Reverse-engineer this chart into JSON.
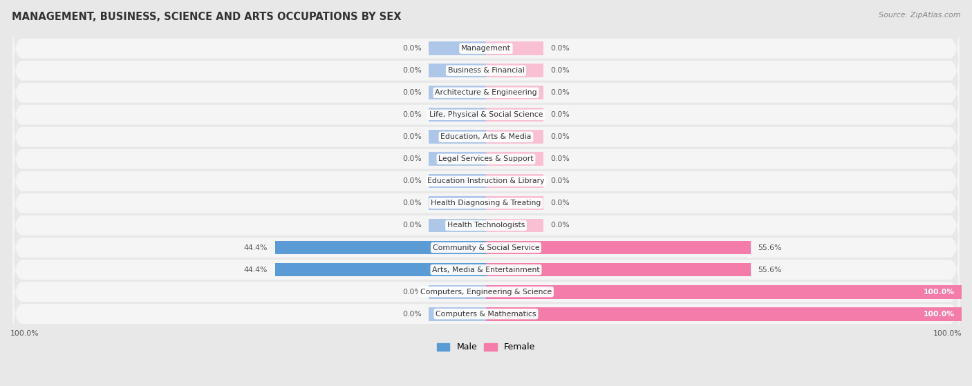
{
  "title": "MANAGEMENT, BUSINESS, SCIENCE AND ARTS OCCUPATIONS BY SEX",
  "source": "Source: ZipAtlas.com",
  "categories": [
    "Management",
    "Business & Financial",
    "Architecture & Engineering",
    "Life, Physical & Social Science",
    "Education, Arts & Media",
    "Legal Services & Support",
    "Education Instruction & Library",
    "Health Diagnosing & Treating",
    "Health Technologists",
    "Community & Social Service",
    "Arts, Media & Entertainment",
    "Computers, Engineering & Science",
    "Computers & Mathematics"
  ],
  "male_values": [
    0.0,
    0.0,
    0.0,
    0.0,
    0.0,
    0.0,
    0.0,
    0.0,
    0.0,
    44.4,
    44.4,
    0.0,
    0.0
  ],
  "female_values": [
    0.0,
    0.0,
    0.0,
    0.0,
    0.0,
    0.0,
    0.0,
    0.0,
    0.0,
    55.6,
    55.6,
    100.0,
    100.0
  ],
  "male_color": "#5b9bd5",
  "male_light_color": "#aec6e8",
  "female_color": "#f47caa",
  "female_light_color": "#f9c0d4",
  "bg_color": "#e8e8e8",
  "row_bg_color": "#f5f5f5",
  "bar_height": 0.62,
  "zero_bar_width": 12,
  "label_fontsize": 7.8,
  "title_fontsize": 10.5,
  "legend_male_color": "#5b9bd5",
  "legend_female_color": "#f47caa"
}
